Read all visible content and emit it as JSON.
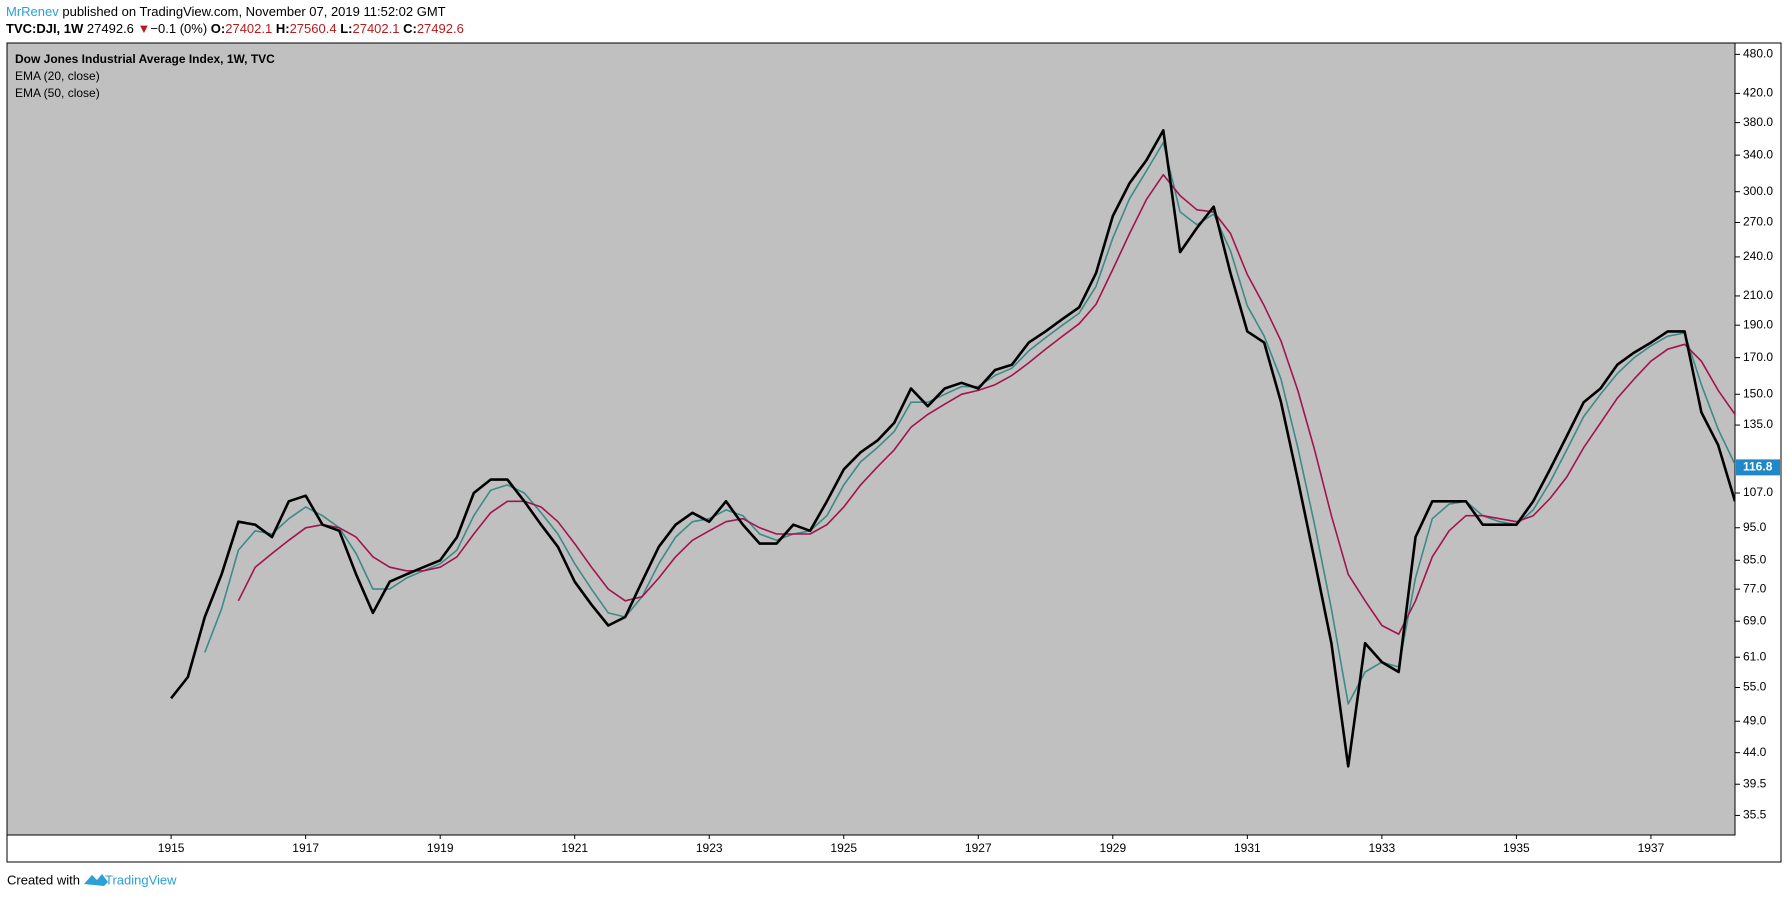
{
  "header": {
    "author": "MrRenev",
    "published": " published on TradingView.com, November 07, 2019 11:52:02 GMT",
    "symbol": "TVC:DJI, 1W",
    "last": "27492.6",
    "arrow": "▼",
    "change": "−0.1 (0%)",
    "o_label": "O:",
    "o": "27402.1",
    "h_label": "H:",
    "h": "27560.4",
    "l_label": "L:",
    "l": "27402.1",
    "c_label": "C:",
    "c": "27492.6"
  },
  "footer": {
    "created": "Created with",
    "brand": "TradingView"
  },
  "chart_data": {
    "type": "line",
    "log_scale": true,
    "x": [
      1915,
      1915.25,
      1915.5,
      1915.75,
      1916,
      1916.25,
      1916.5,
      1916.75,
      1917,
      1917.25,
      1917.5,
      1917.75,
      1918,
      1918.25,
      1918.5,
      1918.75,
      1919,
      1919.25,
      1919.5,
      1919.75,
      1920,
      1920.25,
      1920.5,
      1920.75,
      1921,
      1921.25,
      1921.5,
      1921.75,
      1922,
      1922.25,
      1922.5,
      1922.75,
      1923,
      1923.25,
      1923.5,
      1923.75,
      1924,
      1924.25,
      1924.5,
      1924.75,
      1925,
      1925.25,
      1925.5,
      1925.75,
      1926,
      1926.25,
      1926.5,
      1926.75,
      1927,
      1927.25,
      1927.5,
      1927.75,
      1928,
      1928.25,
      1928.5,
      1928.75,
      1929,
      1929.25,
      1929.5,
      1929.75,
      1930,
      1930.25,
      1930.5,
      1930.75,
      1931,
      1931.25,
      1931.5,
      1931.75,
      1932,
      1932.25,
      1932.5,
      1932.75,
      1933,
      1933.25,
      1933.5,
      1933.75,
      1934,
      1934.25,
      1934.5,
      1934.75,
      1935,
      1935.25,
      1935.5,
      1935.75,
      1936,
      1936.25,
      1936.5,
      1936.75,
      1937,
      1937.25,
      1937.5,
      1937.75,
      1938,
      1938.25
    ],
    "series": [
      {
        "name": "Dow Jones Industrial Average Index, 1W, TVC",
        "color": "#000000",
        "values": [
          53,
          57,
          70,
          81,
          97,
          96,
          92,
          104,
          106,
          96,
          94,
          81,
          71,
          79,
          81,
          83,
          85,
          92,
          107,
          112,
          112,
          104,
          96,
          89,
          79,
          73,
          68,
          70,
          79,
          89,
          96,
          100,
          97,
          104,
          96,
          90,
          90,
          96,
          94,
          104,
          116,
          123,
          128,
          136,
          153,
          144,
          153,
          156,
          153,
          163,
          166,
          179,
          186,
          194,
          202,
          227,
          276,
          309,
          334,
          370,
          244,
          265,
          285,
          227,
          186,
          179,
          146,
          112,
          85,
          64,
          42,
          64,
          60,
          58,
          92,
          104,
          104,
          104,
          96,
          96,
          96,
          104,
          116,
          130,
          146,
          153,
          166,
          173,
          179,
          186,
          186,
          141,
          126,
          104
        ]
      },
      {
        "name": "EMA (20, close)",
        "color": "#3d8b86",
        "values": [
          null,
          null,
          62,
          72,
          88,
          94,
          93,
          98,
          102,
          99,
          95,
          87,
          77,
          77,
          80,
          82,
          84,
          88,
          99,
          108,
          110,
          107,
          100,
          93,
          84,
          77,
          71,
          70,
          75,
          84,
          92,
          97,
          98,
          101,
          99,
          93,
          91,
          93,
          94,
          99,
          110,
          119,
          125,
          132,
          146,
          146,
          150,
          154,
          154,
          160,
          164,
          174,
          182,
          190,
          198,
          217,
          256,
          293,
          322,
          355,
          280,
          268,
          278,
          245,
          203,
          183,
          158,
          125,
          96,
          72,
          52,
          58,
          60,
          59,
          80,
          98,
          103,
          104,
          99,
          97,
          96,
          101,
          111,
          124,
          139,
          150,
          161,
          170,
          177,
          183,
          185,
          155,
          133,
          118
        ]
      },
      {
        "name": "EMA (50, close)",
        "color": "#a3134e",
        "values": [
          null,
          null,
          null,
          null,
          74,
          83,
          87,
          91,
          95,
          96,
          95,
          92,
          86,
          83,
          82,
          82,
          83,
          86,
          93,
          100,
          104,
          104,
          102,
          97,
          90,
          83,
          77,
          74,
          75,
          80,
          86,
          91,
          94,
          97,
          98,
          95,
          93,
          93,
          93,
          96,
          102,
          110,
          117,
          124,
          134,
          140,
          145,
          150,
          152,
          155,
          160,
          167,
          175,
          183,
          191,
          204,
          230,
          260,
          292,
          318,
          296,
          282,
          280,
          260,
          226,
          203,
          180,
          152,
          124,
          99,
          81,
          74,
          68,
          66,
          74,
          86,
          94,
          99,
          99,
          98,
          97,
          99,
          105,
          113,
          125,
          136,
          148,
          158,
          168,
          175,
          178,
          168,
          152,
          140
        ]
      }
    ],
    "xlim": [
      1912.56,
      1938.25
    ],
    "xticks": [
      1915,
      1917,
      1919,
      1921,
      1923,
      1925,
      1927,
      1929,
      1931,
      1933,
      1935,
      1937
    ],
    "ylim": [
      33.2,
      499
    ],
    "yticks": [
      {
        "value": 35.5,
        "label": "35.5"
      },
      {
        "value": 39.5,
        "label": "39.5"
      },
      {
        "value": 44,
        "label": "44.0"
      },
      {
        "value": 49,
        "label": "49.0"
      },
      {
        "value": 55,
        "label": "55.0"
      },
      {
        "value": 61,
        "label": "61.0"
      },
      {
        "value": 69,
        "label": "69.0"
      },
      {
        "value": 77,
        "label": "77.0"
      },
      {
        "value": 85,
        "label": "85.0"
      },
      {
        "value": 95,
        "label": "95.0"
      },
      {
        "value": 107,
        "label": "107.0"
      },
      {
        "value": 135,
        "label": "135.0"
      },
      {
        "value": 150,
        "label": "150.0"
      },
      {
        "value": 170,
        "label": "170.0"
      },
      {
        "value": 190,
        "label": "190.0"
      },
      {
        "value": 210,
        "label": "210.0"
      },
      {
        "value": 240,
        "label": "240.0"
      },
      {
        "value": 270,
        "label": "270.0"
      },
      {
        "value": 300,
        "label": "300.0"
      },
      {
        "value": 340,
        "label": "340.0"
      },
      {
        "value": 380,
        "label": "380.0"
      },
      {
        "value": 420,
        "label": "420.0"
      },
      {
        "value": 480,
        "label": "480.0"
      }
    ],
    "price_marker": 116.8,
    "marker_color": "#1e88c8",
    "grid": false
  }
}
